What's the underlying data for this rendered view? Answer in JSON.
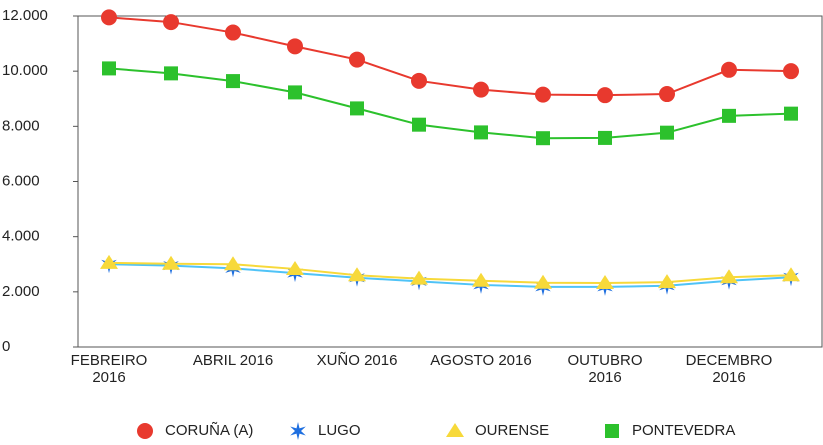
{
  "chart_data": {
    "type": "line",
    "categories": [
      "FEBREIRO 2016",
      null,
      "ABRIL 2016",
      null,
      "XUÑO 2016",
      null,
      "AGOSTO 2016",
      null,
      "OUTUBRO 2016",
      null,
      "DECEMBRO 2016",
      null
    ],
    "series": [
      {
        "name": "CORUÑA (A)",
        "color": "#e8392e",
        "marker": "circle",
        "values": [
          11950,
          11780,
          11400,
          10900,
          10420,
          9650,
          9330,
          9150,
          9130,
          9170,
          10050,
          10000
        ]
      },
      {
        "name": "LUGO",
        "color": "#1e6fe0",
        "line_color": "#4fc3f7",
        "marker": "star",
        "values": [
          3000,
          2950,
          2850,
          2680,
          2510,
          2380,
          2250,
          2180,
          2180,
          2220,
          2400,
          2530
        ]
      },
      {
        "name": "OURENSE",
        "color": "#f7d93a",
        "marker": "triangle",
        "values": [
          3050,
          3020,
          3000,
          2830,
          2600,
          2480,
          2400,
          2330,
          2320,
          2350,
          2530,
          2600
        ]
      },
      {
        "name": "PONTEVEDRA",
        "color": "#2cc12c",
        "marker": "square",
        "values": [
          10100,
          9920,
          9640,
          9230,
          8650,
          8060,
          7780,
          7570,
          7580,
          7770,
          8380,
          8460
        ]
      }
    ],
    "ylim": [
      0,
      12000
    ],
    "yticks": [
      0,
      {
        "value": 2000,
        "label": "2.000"
      },
      {
        "value": 4000,
        "label": "4.000"
      },
      {
        "value": 6000,
        "label": "6.000"
      },
      {
        "value": 8000,
        "label": "8.000"
      },
      {
        "value": 10000,
        "label": "10.000"
      },
      {
        "value": 12000,
        "label": "12.000"
      }
    ],
    "grid": false,
    "legend": "bottom"
  }
}
